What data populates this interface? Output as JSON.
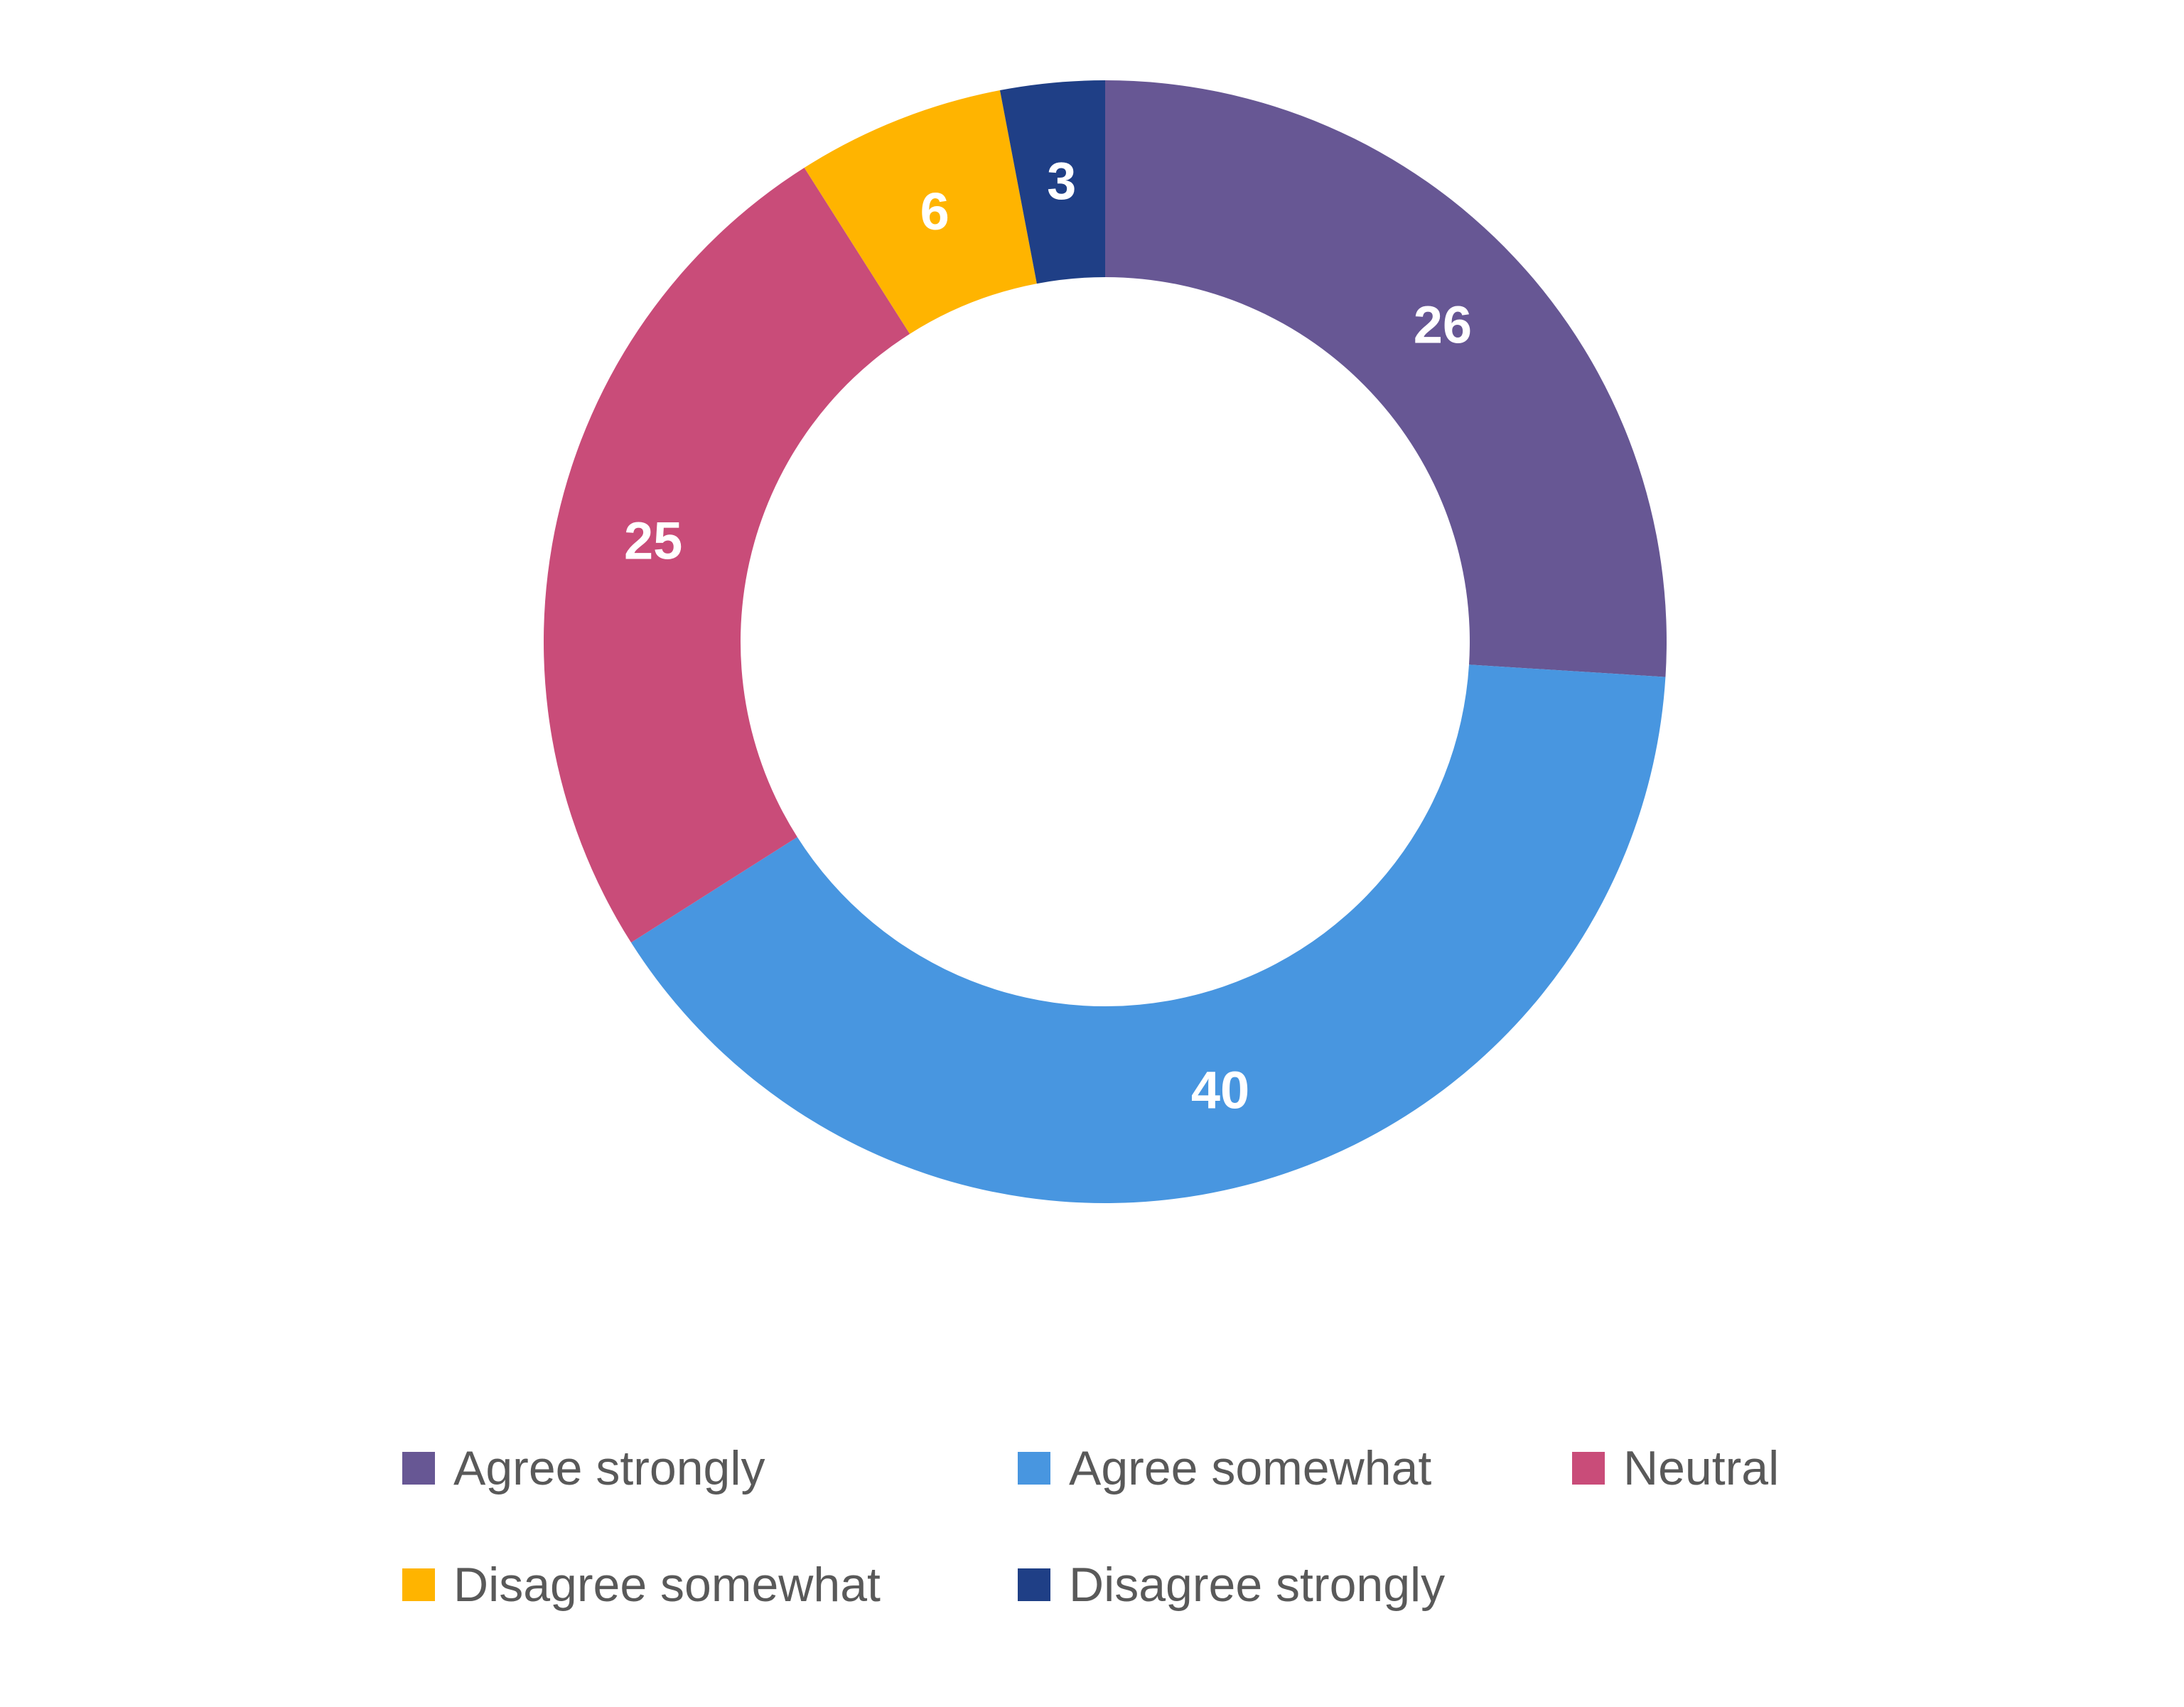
{
  "chart_data": {
    "type": "pie",
    "variant": "donut",
    "series": [
      {
        "name": "Agree strongly",
        "value": 26,
        "color": "#675794"
      },
      {
        "name": "Agree somewhat",
        "value": 40,
        "color": "#4896E0"
      },
      {
        "name": "Neutral",
        "value": 25,
        "color": "#C94C79"
      },
      {
        "name": "Disagree somewhat",
        "value": 6,
        "color": "#FFB400"
      },
      {
        "name": "Disagree strongly",
        "value": 3,
        "color": "#1F3F86"
      }
    ],
    "data_labels": true,
    "legend": "bottom",
    "title": ""
  }
}
